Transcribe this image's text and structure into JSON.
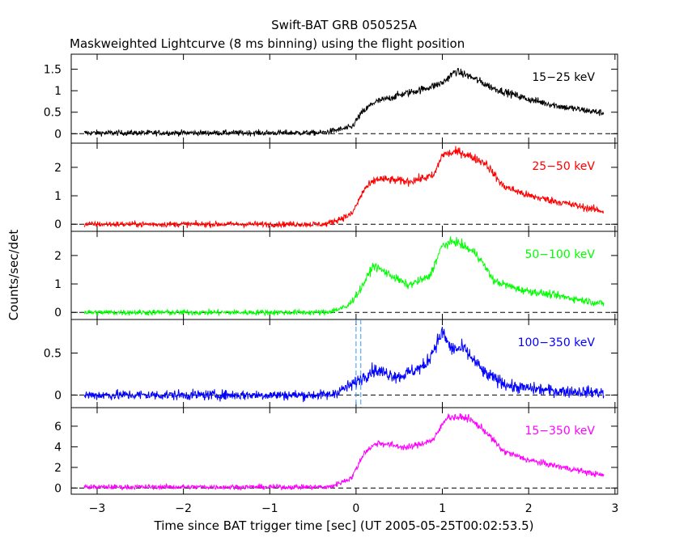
{
  "chart_data": {
    "type": "line",
    "title": "Swift-BAT GRB 050525A",
    "subtitle": "Maskweighted Lightcurve (8 ms binning) using the flight position",
    "xlabel": "Time since BAT trigger time [sec] (UT 2005-05-25T00:02:53.5)",
    "ylabel": "Counts/sec/det",
    "xlim": [
      -3.3,
      3.03
    ],
    "xticks": [
      -3,
      -2,
      -1,
      0,
      1,
      2,
      3
    ],
    "xtick_labels": [
      "−3",
      "−2",
      "−1",
      "0",
      "1",
      "2",
      "3"
    ],
    "x_range_data": [
      -3.15,
      2.87
    ],
    "zero_line": "dashed",
    "markers": {
      "dashed_vertical_lines": [
        0.0,
        0.055
      ],
      "color": "#3399ff",
      "panel": 4
    },
    "panels": [
      {
        "name": "15−25 keV",
        "color": "#000000",
        "ylim": [
          -0.22,
          1.85
        ],
        "yticks": [
          0,
          0.5,
          1,
          1.5
        ],
        "ytick_labels": [
          "0",
          "0.5",
          "1",
          "1.5"
        ],
        "noise": 0.06,
        "profile": [
          [
            -3.15,
            0.02
          ],
          [
            -0.4,
            0.02
          ],
          [
            -0.05,
            0.15
          ],
          [
            0.05,
            0.45
          ],
          [
            0.2,
            0.72
          ],
          [
            0.5,
            0.9
          ],
          [
            0.8,
            1.05
          ],
          [
            1.0,
            1.18
          ],
          [
            1.15,
            1.45
          ],
          [
            1.3,
            1.35
          ],
          [
            1.6,
            1.05
          ],
          [
            2.0,
            0.8
          ],
          [
            2.4,
            0.62
          ],
          [
            2.87,
            0.48
          ]
        ]
      },
      {
        "name": "25−50 keV",
        "color": "#ff0000",
        "ylim": [
          -0.25,
          2.85
        ],
        "yticks": [
          0,
          1,
          2
        ],
        "ytick_labels": [
          "0",
          "1",
          "2"
        ],
        "noise": 0.1,
        "profile": [
          [
            -3.15,
            0.0
          ],
          [
            -0.35,
            0.0
          ],
          [
            -0.05,
            0.35
          ],
          [
            0.1,
            1.25
          ],
          [
            0.25,
            1.6
          ],
          [
            0.6,
            1.5
          ],
          [
            0.9,
            1.7
          ],
          [
            1.0,
            2.45
          ],
          [
            1.2,
            2.55
          ],
          [
            1.5,
            2.15
          ],
          [
            1.7,
            1.35
          ],
          [
            2.0,
            1.0
          ],
          [
            2.4,
            0.75
          ],
          [
            2.87,
            0.45
          ]
        ]
      },
      {
        "name": "50−100 keV",
        "color": "#00ff00",
        "ylim": [
          -0.25,
          2.85
        ],
        "yticks": [
          0,
          1,
          2
        ],
        "ytick_labels": [
          "0",
          "1",
          "2"
        ],
        "noise": 0.1,
        "profile": [
          [
            -3.15,
            0.0
          ],
          [
            -0.35,
            0.0
          ],
          [
            -0.1,
            0.2
          ],
          [
            0.05,
            0.8
          ],
          [
            0.2,
            1.65
          ],
          [
            0.35,
            1.4
          ],
          [
            0.6,
            0.95
          ],
          [
            0.85,
            1.25
          ],
          [
            1.0,
            2.35
          ],
          [
            1.15,
            2.5
          ],
          [
            1.4,
            2.05
          ],
          [
            1.6,
            1.1
          ],
          [
            1.9,
            0.8
          ],
          [
            2.3,
            0.6
          ],
          [
            2.87,
            0.3
          ]
        ]
      },
      {
        "name": "100−350 keV",
        "color": "#0000ff",
        "ylim": [
          -0.15,
          0.9
        ],
        "yticks": [
          0,
          0.5
        ],
        "ytick_labels": [
          "0",
          "0.5"
        ],
        "noise": 0.06,
        "profile": [
          [
            -3.15,
            0.0
          ],
          [
            -0.3,
            0.0
          ],
          [
            -0.05,
            0.12
          ],
          [
            0.2,
            0.3
          ],
          [
            0.5,
            0.22
          ],
          [
            0.8,
            0.35
          ],
          [
            1.0,
            0.75
          ],
          [
            1.1,
            0.55
          ],
          [
            1.25,
            0.55
          ],
          [
            1.5,
            0.25
          ],
          [
            1.8,
            0.1
          ],
          [
            2.3,
            0.05
          ],
          [
            2.87,
            0.03
          ]
        ]
      },
      {
        "name": "15−350 keV",
        "color": "#ff00ff",
        "ylim": [
          -0.6,
          7.8
        ],
        "yticks": [
          0,
          2,
          4,
          6
        ],
        "ytick_labels": [
          "0",
          "2",
          "4",
          "6"
        ],
        "noise": 0.22,
        "profile": [
          [
            -3.15,
            0.1
          ],
          [
            -0.3,
            0.1
          ],
          [
            -0.05,
            1.0
          ],
          [
            0.1,
            3.5
          ],
          [
            0.25,
            4.4
          ],
          [
            0.6,
            3.9
          ],
          [
            0.9,
            4.7
          ],
          [
            1.05,
            6.9
          ],
          [
            1.3,
            6.8
          ],
          [
            1.5,
            5.5
          ],
          [
            1.7,
            3.6
          ],
          [
            2.0,
            2.7
          ],
          [
            2.4,
            2.0
          ],
          [
            2.87,
            1.2
          ]
        ]
      }
    ]
  }
}
